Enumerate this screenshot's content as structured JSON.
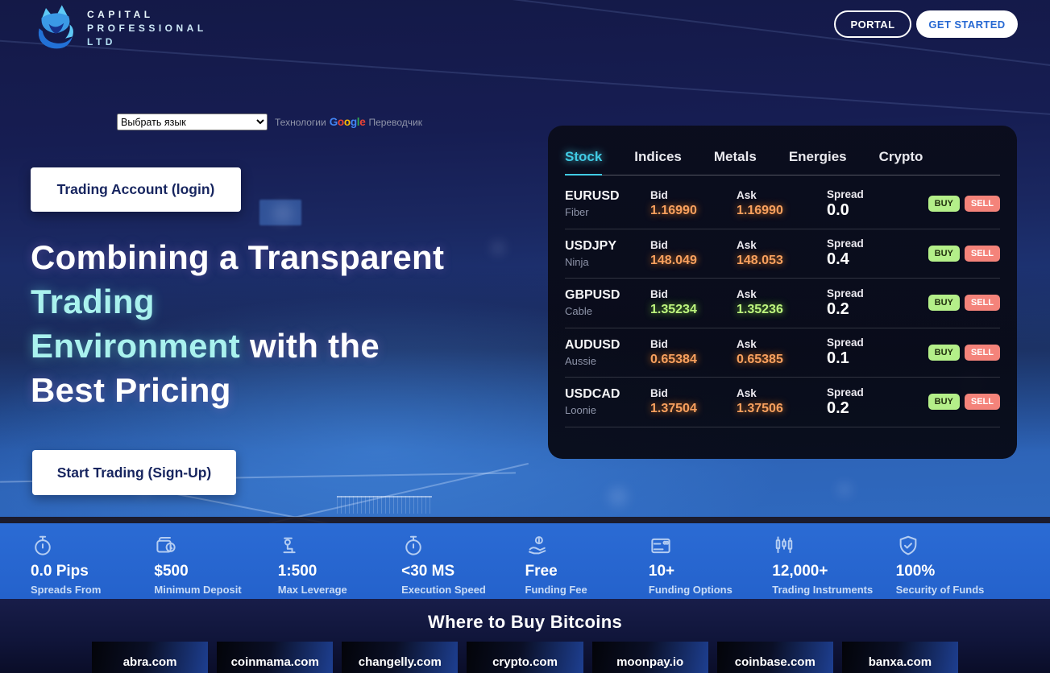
{
  "header": {
    "logo_line1": "CAPITAL",
    "logo_line2": "PROFESSIONAL",
    "logo_line3": "LTD",
    "portal_label": "PORTAL",
    "get_started_label": "GET STARTED"
  },
  "translate": {
    "select_value": "Выбрать язык",
    "powered_prefix": "Технологии",
    "google_word": "Google",
    "powered_suffix": "Переводчик"
  },
  "hero": {
    "login_button": "Trading Account (login)",
    "heading_line1": "Combining a Transparent",
    "heading_line2": "Trading",
    "heading_line3_cyan": "Environment",
    "heading_line3_rest": " with the",
    "heading_line4": "Best Pricing",
    "signup_button": "Start Trading (Sign-Up)"
  },
  "widget": {
    "tabs": [
      {
        "label": "Stock",
        "active": true
      },
      {
        "label": "Indices",
        "active": false
      },
      {
        "label": "Metals",
        "active": false
      },
      {
        "label": "Energies",
        "active": false
      },
      {
        "label": "Crypto",
        "active": false
      }
    ],
    "columns": {
      "bid": "Bid",
      "ask": "Ask",
      "spread": "Spread"
    },
    "buy_label": "BUY",
    "sell_label": "SELL",
    "rows": [
      {
        "symbol": "EURUSD",
        "nickname": "Fiber",
        "bid": "1.16990",
        "ask": "1.16990",
        "spread": "0.0",
        "trend": "down"
      },
      {
        "symbol": "USDJPY",
        "nickname": "Ninja",
        "bid": "148.049",
        "ask": "148.053",
        "spread": "0.4",
        "trend": "down"
      },
      {
        "symbol": "GBPUSD",
        "nickname": "Cable",
        "bid": "1.35234",
        "ask": "1.35236",
        "spread": "0.2",
        "trend": "up"
      },
      {
        "symbol": "AUDUSD",
        "nickname": "Aussie",
        "bid": "0.65384",
        "ask": "0.65385",
        "spread": "0.1",
        "trend": "down"
      },
      {
        "symbol": "USDCAD",
        "nickname": "Loonie",
        "bid": "1.37504",
        "ask": "1.37506",
        "spread": "0.2",
        "trend": "down"
      }
    ]
  },
  "stats": [
    {
      "icon": "stopwatch-icon",
      "value": "0.0 Pips",
      "label": "Spreads From"
    },
    {
      "icon": "wallet-lock-icon",
      "value": "$500",
      "label": "Minimum Deposit"
    },
    {
      "icon": "leverage-icon",
      "value": "1:500",
      "label": "Max Leverage"
    },
    {
      "icon": "stopwatch-icon",
      "value": "<30 MS",
      "label": "Execution Speed"
    },
    {
      "icon": "hand-coin-icon",
      "value": "Free",
      "label": "Funding Fee"
    },
    {
      "icon": "credit-card-icon",
      "value": "10+",
      "label": "Funding Options"
    },
    {
      "icon": "candlestick-chart-icon",
      "value": "12,000+",
      "label": "Trading Instruments"
    },
    {
      "icon": "shield-check-icon",
      "value": "100%",
      "label": "Security of Funds"
    }
  ],
  "bitcoin_section": {
    "title": "Where to Buy Bitcoins",
    "links": [
      "abra.com",
      "coinmama.com",
      "changelly.com",
      "crypto.com",
      "moonpay.io",
      "coinbase.com",
      "banxa.com"
    ]
  },
  "colors": {
    "accent_cyan": "#41cbe4",
    "price_up_green": "#bdf47e",
    "price_down_orange": "#f7a05e",
    "buy_button_green": "#b4ef89",
    "sell_button_red": "#f4837a",
    "stats_bar_blue": "#2565d0",
    "get_started_blue": "#2668d2",
    "heading_cyan": "#a9f2ee",
    "google_letters": [
      "#4285F4",
      "#EA4335",
      "#FBBC05",
      "#4285F4",
      "#34A853",
      "#EA4335"
    ]
  }
}
